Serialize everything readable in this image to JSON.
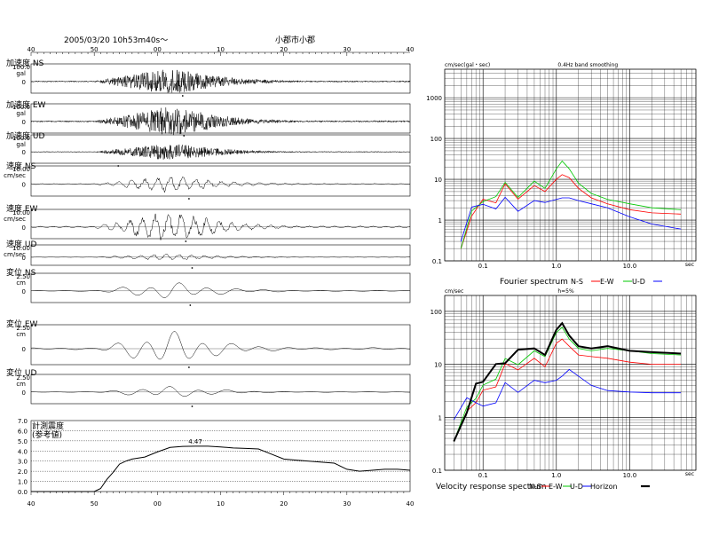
{
  "header": {
    "datetime": "2005/03/20  10h53m40s〜",
    "location": "小郡市小郡",
    "time_ticks": [
      "40",
      "50",
      "00",
      "10",
      "20",
      "30",
      "40"
    ]
  },
  "chart_data": [
    {
      "type": "line",
      "title": "",
      "channels": [
        {
          "label": "加速度 NS",
          "scale": "100.0",
          "unit": "gal",
          "zero": "0",
          "peak_time": "00:04"
        },
        {
          "label": "加速度 EW",
          "scale": "100.0",
          "unit": "gal",
          "zero": "0",
          "peak_time": "00:04"
        },
        {
          "label": "加速度 UD",
          "scale": "100.0",
          "unit": "gal",
          "zero": "0",
          "peak_time": "53:50"
        },
        {
          "label": "速度 NS",
          "scale": "10.00",
          "unit": "cm/sec",
          "zero": "0",
          "peak_time": "00:05"
        },
        {
          "label": "速度 EW",
          "scale": "10.00",
          "unit": "cm/sec",
          "zero": "0",
          "peak_time": "00:04"
        },
        {
          "label": "速度 UD",
          "scale": "10.00",
          "unit": "cm/sec",
          "zero": "0",
          "peak_time": "00:04"
        },
        {
          "label": "変位 NS",
          "scale": "2.50",
          "unit": "cm",
          "zero": "0",
          "peak_time": "00:05"
        },
        {
          "label": "変位 EW",
          "scale": "2.50",
          "unit": "cm",
          "zero": "0",
          "peak_time": "00:05"
        },
        {
          "label": "変位 UD",
          "scale": "2.50",
          "unit": "cm",
          "zero": "0",
          "peak_time": "00:05"
        }
      ]
    },
    {
      "type": "line",
      "title": "計測震度\n(参考値)",
      "ylim": [
        0,
        7
      ],
      "yticks": [
        "7.0",
        "6.0",
        "5.0",
        "4.0",
        "3.0",
        "2.0",
        "1.0",
        "0.0"
      ],
      "peak_label": "4.47",
      "x": [
        40,
        50,
        51,
        52,
        53,
        54,
        55,
        56,
        58,
        60,
        62,
        64,
        66,
        68,
        70,
        72,
        74,
        76,
        78,
        80,
        82,
        84,
        86,
        88,
        90,
        92,
        94,
        96,
        98,
        100
      ],
      "values": [
        0.0,
        0.0,
        0.3,
        1.2,
        1.9,
        2.7,
        3.0,
        3.2,
        3.4,
        3.9,
        4.35,
        4.45,
        4.47,
        4.47,
        4.4,
        4.3,
        4.25,
        4.2,
        3.7,
        3.2,
        3.1,
        3.0,
        2.9,
        2.8,
        2.2,
        2.0,
        2.1,
        2.2,
        2.2,
        2.1
      ]
    },
    {
      "type": "line",
      "title": "Fourier spectrum",
      "ylabel": "cm/sec(gal・sec)",
      "annotation": "0.4Hz band smoothing",
      "xlabel": "sec",
      "log_x": true,
      "log_y": true,
      "xlim": [
        0.03,
        80
      ],
      "ylim": [
        0.1,
        5000
      ],
      "xticks": [
        "0.1",
        "1.0",
        "10.0"
      ],
      "yticks": [
        "1000",
        "100",
        "10",
        "1",
        "0.1"
      ],
      "x": [
        0.05,
        0.07,
        0.1,
        0.15,
        0.2,
        0.3,
        0.5,
        0.7,
        1.0,
        1.2,
        1.5,
        2,
        3,
        5,
        10,
        20,
        50
      ],
      "series": [
        {
          "name": "N-S",
          "color": "#ff0000",
          "values": [
            0.2,
            1.2,
            4.0,
            3.5,
            6.0,
            5.0,
            7.0,
            5.0,
            10.0,
            13.0,
            11.0,
            6.0,
            3.5,
            2.5,
            1.8,
            1.5,
            1.4
          ]
        },
        {
          "name": "E-W",
          "color": "#00c800",
          "values": [
            0.2,
            1.6,
            3.5,
            5.0,
            6.5,
            5.5,
            9.0,
            6.0,
            18.0,
            28.0,
            18.0,
            8.0,
            4.5,
            3.2,
            2.5,
            2.0,
            1.8
          ]
        },
        {
          "name": "U-D",
          "color": "#0000ff",
          "values": [
            0.3,
            2.0,
            3.0,
            2.5,
            2.8,
            2.5,
            3.0,
            2.7,
            3.2,
            3.5,
            3.5,
            3.0,
            2.5,
            2.0,
            1.2,
            0.8,
            0.6
          ]
        }
      ],
      "legend": [
        "Fourier spectrum",
        "N-S",
        "E-W",
        "U-D"
      ]
    },
    {
      "type": "line",
      "title": "Velocity response spectrum",
      "ylabel": "cm/sec",
      "annotation": "h=5%",
      "xlabel": "sec",
      "log_x": true,
      "log_y": true,
      "xlim": [
        0.03,
        80
      ],
      "ylim": [
        0.1,
        200
      ],
      "xticks": [
        "0.1",
        "1.0",
        "10.0"
      ],
      "yticks": [
        "100",
        "10",
        "1",
        "0.1"
      ],
      "x": [
        0.04,
        0.06,
        0.08,
        0.1,
        0.15,
        0.2,
        0.3,
        0.5,
        0.7,
        1.0,
        1.2,
        1.5,
        2,
        3,
        5,
        10,
        20,
        50
      ],
      "series": [
        {
          "name": "N-S",
          "color": "#ff0000",
          "values": [
            0.35,
            1.0,
            2.5,
            4.0,
            5.0,
            8.0,
            12.0,
            13.0,
            9.0,
            25.0,
            30.0,
            22.0,
            15.0,
            14.0,
            13.0,
            11.0,
            10.0,
            10.0
          ]
        },
        {
          "name": "E-W",
          "color": "#00c800",
          "values": [
            0.35,
            1.2,
            3.0,
            5.0,
            7.0,
            10.0,
            15.0,
            18.0,
            14.0,
            40.0,
            50.0,
            30.0,
            20.0,
            18.0,
            20.0,
            18.0,
            16.0,
            15.0
          ]
        },
        {
          "name": "U-D",
          "color": "#0000ff",
          "values": [
            0.9,
            1.8,
            2.5,
            2.0,
            2.5,
            3.5,
            4.5,
            5.0,
            4.5,
            5.0,
            6.0,
            8.0,
            6.0,
            4.0,
            3.2,
            3.0,
            2.9,
            2.9
          ]
        },
        {
          "name": "Horizon",
          "color": "#000000",
          "values": [
            0.35,
            1.3,
            3.2,
            5.2,
            7.5,
            11.0,
            16.0,
            20.0,
            15.0,
            45.0,
            60.0,
            35.0,
            22.0,
            20.0,
            22.0,
            18.0,
            17.0,
            16.0
          ]
        }
      ],
      "legend": [
        "Velocity response spectrum",
        "N-S",
        "E-W",
        "U-D",
        "Horizon"
      ]
    }
  ]
}
